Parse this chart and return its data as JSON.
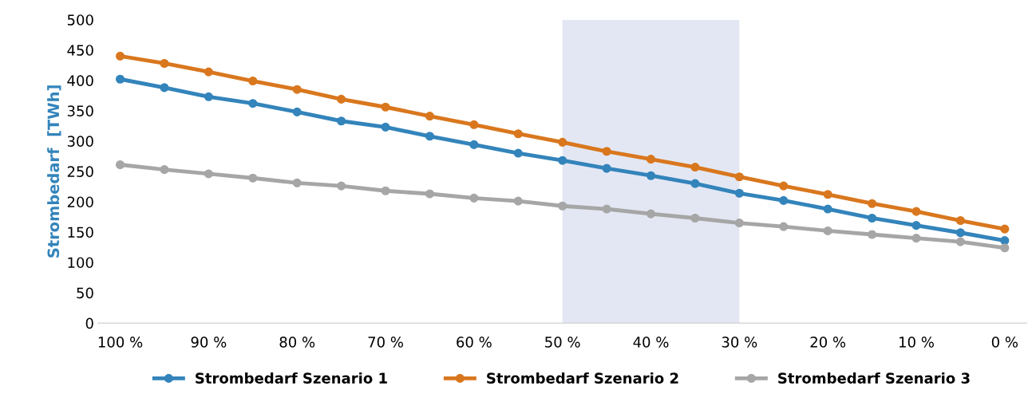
{
  "chart_data": {
    "type": "line",
    "ylabel": "Strombedarf  [TWh]",
    "x": [
      100,
      95,
      90,
      85,
      80,
      75,
      70,
      65,
      60,
      55,
      50,
      45,
      40,
      35,
      30,
      25,
      20,
      15,
      10,
      5,
      0
    ],
    "series": [
      {
        "name": "Strombedarf Szenario 1",
        "color": "#3384bb",
        "values": [
          402,
          388,
          373,
          362,
          348,
          333,
          323,
          308,
          294,
          280,
          268,
          255,
          243,
          230,
          214,
          202,
          188,
          173,
          161,
          149,
          136
        ]
      },
      {
        "name": "Strombedarf Szenario 2",
        "color": "#d9771e",
        "values": [
          440,
          428,
          414,
          399,
          385,
          369,
          356,
          341,
          327,
          312,
          298,
          283,
          270,
          257,
          241,
          226,
          212,
          197,
          184,
          169,
          155
        ]
      },
      {
        "name": "Strombedarf Szenario 3",
        "color": "#a6a6a6",
        "values": [
          261,
          253,
          246,
          239,
          231,
          226,
          218,
          213,
          206,
          201,
          193,
          188,
          180,
          173,
          165,
          159,
          152,
          146,
          140,
          134,
          124
        ]
      }
    ],
    "xlim": [
      102.5,
      -2.5
    ],
    "xticks": [
      {
        "value": 100,
        "label": "100 %"
      },
      {
        "value": 90,
        "label": "90 %"
      },
      {
        "value": 80,
        "label": "80 %"
      },
      {
        "value": 70,
        "label": "70 %"
      },
      {
        "value": 60,
        "label": "60 %"
      },
      {
        "value": 50,
        "label": "50 %"
      },
      {
        "value": 40,
        "label": "40 %"
      },
      {
        "value": 30,
        "label": "30 %"
      },
      {
        "value": 20,
        "label": "20 %"
      },
      {
        "value": 10,
        "label": "10 %"
      },
      {
        "value": 0,
        "label": "0 %"
      }
    ],
    "ylim": [
      0,
      500
    ],
    "yticks": [
      0,
      50,
      100,
      150,
      200,
      250,
      300,
      350,
      400,
      450,
      500
    ],
    "bands": [
      {
        "axis": "x",
        "from": 50,
        "to": 30,
        "color": "#e3e7f3"
      }
    ],
    "grid": false,
    "legend": "bottom",
    "marker": "circle",
    "line_style": "solid"
  }
}
